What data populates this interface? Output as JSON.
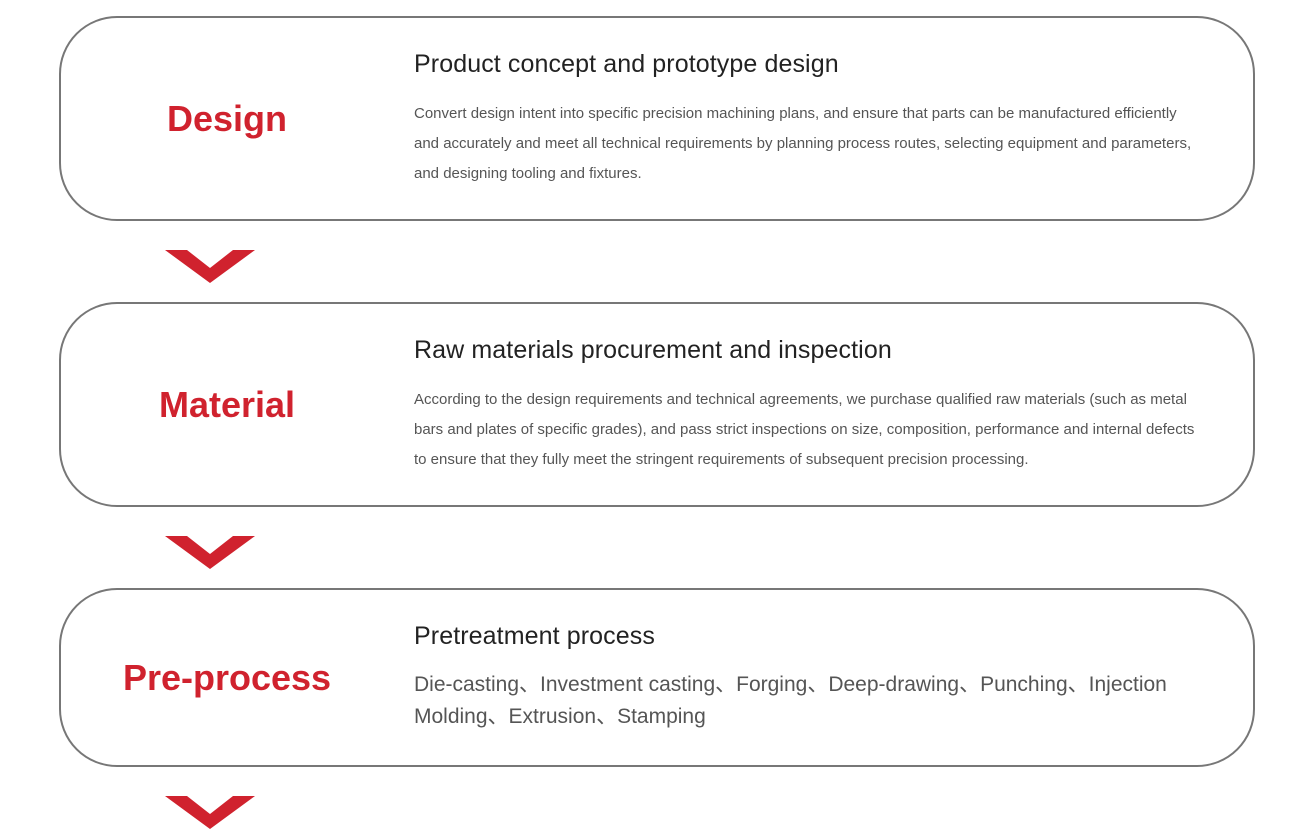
{
  "accent_color": "#d0222e",
  "steps": [
    {
      "label": "Design",
      "title": "Product concept and prototype design",
      "description": "Convert design intent into specific precision machining plans, and ensure that parts can be manufactured efficiently and accurately and meet all technical requirements by planning process routes, selecting equipment and parameters, and designing tooling and fixtures."
    },
    {
      "label": "Material",
      "title": "Raw materials procurement and inspection",
      "description": "According to the design requirements and technical agreements, we purchase qualified raw materials (such as metal bars and plates of specific grades), and pass strict inspections on size, composition, performance and internal defects to ensure that they fully meet the stringent requirements of subsequent precision processing."
    },
    {
      "label": "Pre-process",
      "title": "Pretreatment process",
      "description": "Die-casting、Investment casting、Forging、Deep-drawing、Punching、Injection Molding、Extrusion、Stamping"
    }
  ],
  "arrow_icon": "chevron-down-icon"
}
